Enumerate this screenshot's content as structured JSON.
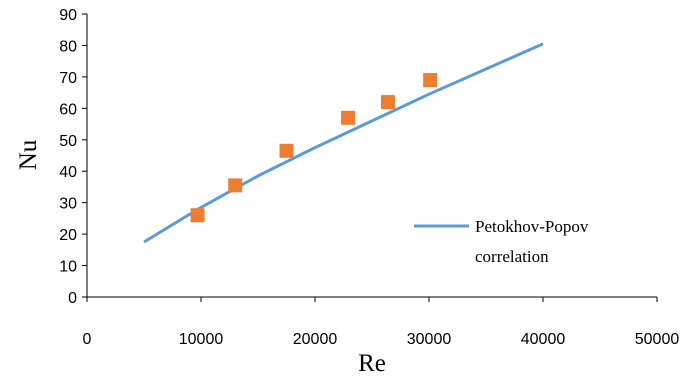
{
  "chart_data": {
    "type": "scatter",
    "title": "",
    "xlabel": "Re",
    "ylabel": "Nu",
    "xlim": [
      0,
      50000
    ],
    "ylim": [
      0,
      90
    ],
    "xticks": [
      0,
      10000,
      20000,
      30000,
      40000,
      50000
    ],
    "yticks": [
      0,
      10,
      20,
      30,
      40,
      50,
      60,
      70,
      80,
      90
    ],
    "grid": false,
    "legend_position": "bottom-right",
    "series": [
      {
        "name": "",
        "kind": "scatter",
        "marker": "square",
        "color": "#ED7D31",
        "points": [
          {
            "x": 9700,
            "y": 26
          },
          {
            "x": 13000,
            "y": 35.5
          },
          {
            "x": 17500,
            "y": 46.5
          },
          {
            "x": 22900,
            "y": 57
          },
          {
            "x": 26400,
            "y": 62
          },
          {
            "x": 30100,
            "y": 69
          }
        ]
      },
      {
        "name": "Petokhov-Popov correlation",
        "kind": "line",
        "color": "#5B9BD5",
        "points": [
          {
            "x": 5000,
            "y": 17.5
          },
          {
            "x": 7500,
            "y": 23
          },
          {
            "x": 10000,
            "y": 28.5
          },
          {
            "x": 15000,
            "y": 38.5
          },
          {
            "x": 20000,
            "y": 47.5
          },
          {
            "x": 25000,
            "y": 56
          },
          {
            "x": 30000,
            "y": 64.5
          },
          {
            "x": 35000,
            "y": 72.5
          },
          {
            "x": 40000,
            "y": 80.5
          }
        ]
      }
    ],
    "legend": {
      "line1": "Petokhov-Popov",
      "line2": "correlation"
    }
  }
}
